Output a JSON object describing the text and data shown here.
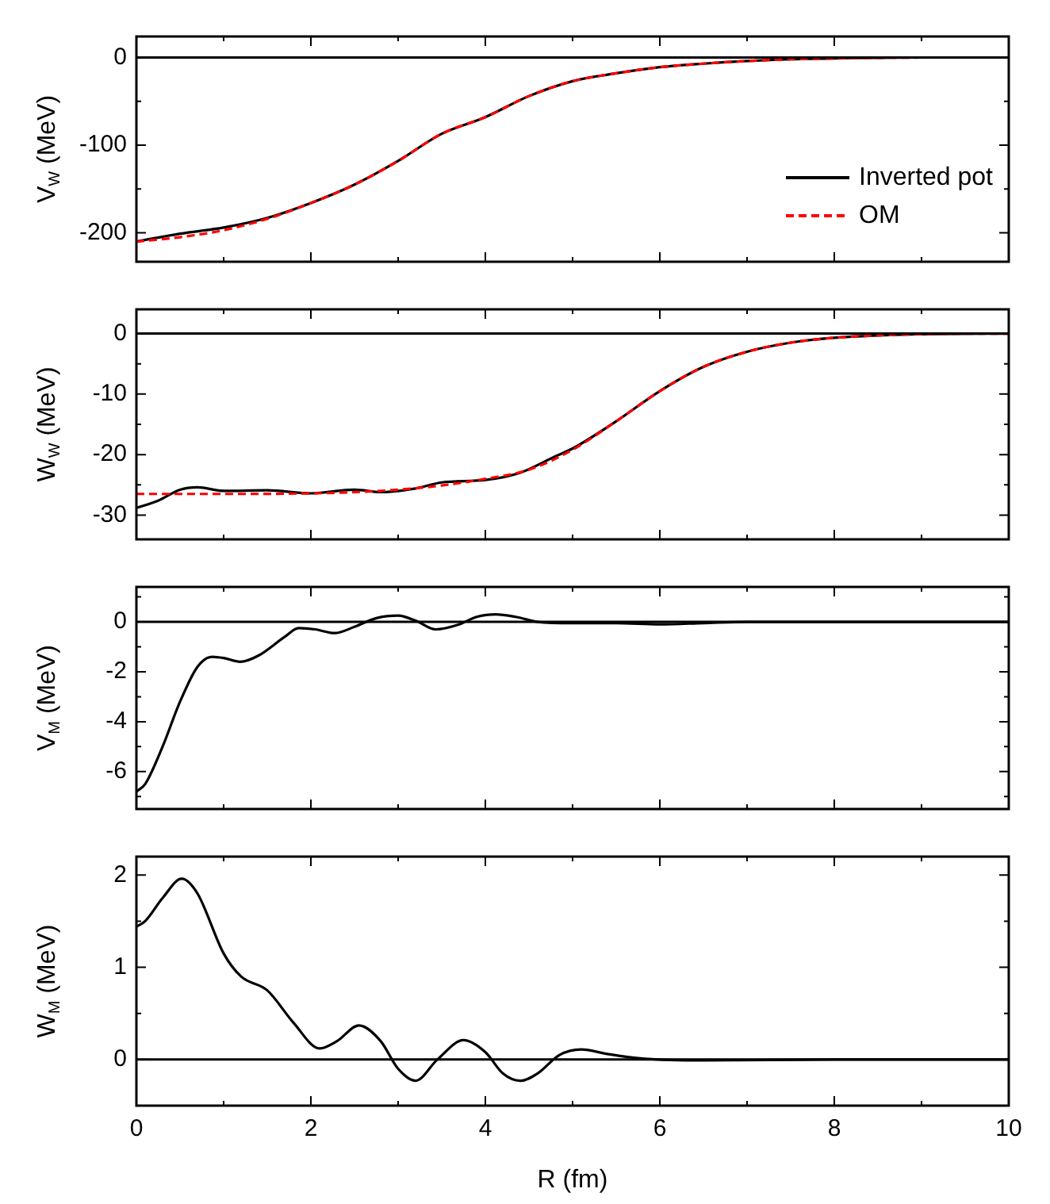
{
  "chart_data": [
    {
      "type": "line",
      "ylabel": "V$_{W}$ (MeV)",
      "xlim": [
        0,
        10
      ],
      "xticks": [
        0,
        {
          "value": 1,
          "label": null
        },
        2,
        {
          "value": 3,
          "label": null
        },
        4,
        {
          "value": 5,
          "label": null
        },
        6,
        {
          "value": 7,
          "label": null
        },
        8,
        {
          "value": 9,
          "label": null
        },
        10
      ],
      "ylim": [
        -233,
        24
      ],
      "yticks": [
        {
          "value": -200,
          "label": "-200"
        },
        {
          "value": -150,
          "label": null
        },
        {
          "value": -100,
          "label": "-100"
        },
        {
          "value": -50,
          "label": null
        },
        0
      ],
      "tick_labels": "y",
      "grid": false,
      "legend": "right",
      "ref_lines": [
        {
          "axis": "y",
          "value": 0
        }
      ],
      "series": [
        {
          "name": "Inverted pot",
          "color": "#000000",
          "line_style": "solid",
          "x": [
            0,
            0.5,
            1,
            1.5,
            2,
            2.5,
            3,
            3.5,
            4,
            4.5,
            5,
            5.5,
            6,
            6.5,
            7,
            7.5,
            8,
            9,
            10
          ],
          "values": [
            -210,
            -201,
            -194,
            -183,
            -166,
            -145,
            -118,
            -87,
            -68,
            -44,
            -27,
            -18,
            -11,
            -7,
            -4,
            -2,
            -1,
            0,
            0
          ]
        },
        {
          "name": "OM",
          "color": "#ff0000",
          "line_style": "dashed",
          "x": [
            0,
            0.5,
            1,
            1.5,
            2,
            2.5,
            3,
            3.5,
            4,
            4.5,
            5,
            5.5,
            6,
            6.5,
            7,
            7.5,
            8,
            9,
            10
          ],
          "values": [
            -210,
            -205,
            -197,
            -184,
            -166,
            -145,
            -118,
            -87,
            -68,
            -44,
            -27,
            -18,
            -11,
            -7,
            -4,
            -2,
            -1,
            0,
            0
          ]
        }
      ]
    },
    {
      "type": "line",
      "ylabel": "W$_{W}$ (MeV)",
      "xlim": [
        0,
        10
      ],
      "xticks": [
        0,
        {
          "value": 1,
          "label": null
        },
        2,
        {
          "value": 3,
          "label": null
        },
        4,
        {
          "value": 5,
          "label": null
        },
        6,
        {
          "value": 7,
          "label": null
        },
        8,
        {
          "value": 9,
          "label": null
        },
        10
      ],
      "ylim": [
        -34,
        4
      ],
      "yticks": [
        -30,
        {
          "value": -25,
          "label": null
        },
        -20,
        {
          "value": -15,
          "label": null
        },
        -10,
        {
          "value": -5,
          "label": null
        },
        0
      ],
      "tick_labels": "y",
      "grid": false,
      "ref_lines": [
        {
          "axis": "y",
          "value": 0
        }
      ],
      "series": [
        {
          "color": "#000000",
          "line_style": "solid",
          "x": [
            0,
            0.25,
            0.5,
            0.7,
            1,
            1.5,
            2,
            2.5,
            2.8,
            3.2,
            3.5,
            4,
            4.4,
            4.8,
            5,
            5.5,
            6,
            6.5,
            7,
            7.5,
            8,
            9,
            10
          ],
          "values": [
            -28.8,
            -27.6,
            -25.8,
            -25.4,
            -26,
            -25.9,
            -26.4,
            -25.8,
            -26.2,
            -25.6,
            -24.6,
            -24.2,
            -23,
            -20.3,
            -19,
            -14.5,
            -9.5,
            -5.5,
            -3,
            -1.5,
            -0.7,
            -0.1,
            0
          ]
        },
        {
          "color": "#ff0000",
          "line_style": "dashed",
          "x": [
            0,
            1,
            2,
            2.5,
            3,
            3.5,
            4,
            4.5,
            5,
            5.5,
            6,
            6.5,
            7,
            7.5,
            8,
            9,
            10
          ],
          "values": [
            -26.5,
            -26.5,
            -26.4,
            -26.2,
            -25.8,
            -25.1,
            -24,
            -22.5,
            -19.2,
            -14.5,
            -9.5,
            -5.5,
            -3,
            -1.5,
            -0.7,
            -0.1,
            0
          ]
        }
      ]
    },
    {
      "type": "line",
      "ylabel": "V$_{M}$ (MeV)",
      "xlim": [
        0,
        10
      ],
      "xticks": [
        0,
        {
          "value": 1,
          "label": null
        },
        2,
        {
          "value": 3,
          "label": null
        },
        4,
        {
          "value": 5,
          "label": null
        },
        6,
        {
          "value": 7,
          "label": null
        },
        8,
        {
          "value": 9,
          "label": null
        },
        10
      ],
      "ylim": [
        -7.5,
        1.4
      ],
      "yticks": [
        {
          "value": -7,
          "label": null
        },
        -6,
        {
          "value": -5,
          "label": null
        },
        -4,
        {
          "value": -3,
          "label": null
        },
        -2,
        {
          "value": -1,
          "label": null
        },
        0,
        {
          "value": 1,
          "label": null
        }
      ],
      "tick_labels": "y",
      "grid": false,
      "ref_lines": [
        {
          "axis": "y",
          "value": 0
        }
      ],
      "series": [
        {
          "color": "#000000",
          "line_style": "solid",
          "x": [
            0,
            0.1,
            0.3,
            0.5,
            0.7,
            0.87,
            1,
            1.19,
            1.4,
            1.7,
            1.86,
            2.05,
            2.27,
            2.5,
            2.75,
            3,
            3.2,
            3.43,
            3.7,
            3.9,
            4.12,
            4.35,
            4.6,
            5,
            5.5,
            6,
            6.5,
            7,
            8,
            10
          ],
          "values": [
            -6.8,
            -6.5,
            -5,
            -3.2,
            -1.8,
            -1.4,
            -1.45,
            -1.6,
            -1.35,
            -0.6,
            -0.25,
            -0.3,
            -0.45,
            -0.2,
            0.15,
            0.25,
            0.05,
            -0.3,
            -0.1,
            0.2,
            0.3,
            0.2,
            0,
            -0.05,
            -0.05,
            -0.1,
            -0.05,
            0,
            0,
            0
          ]
        }
      ]
    },
    {
      "type": "line",
      "ylabel": "W$_{M}$ (MeV)",
      "xlabel": "R (fm)",
      "xlim": [
        0,
        10
      ],
      "xticks": [
        0,
        {
          "value": 1,
          "label": null
        },
        2,
        {
          "value": 3,
          "label": null
        },
        4,
        {
          "value": 5,
          "label": null
        },
        6,
        {
          "value": 7,
          "label": null
        },
        8,
        {
          "value": 9,
          "label": null
        },
        10
      ],
      "ylim": [
        -0.5,
        2.2
      ],
      "yticks": [
        0,
        {
          "value": 0.5,
          "label": null
        },
        1,
        {
          "value": 1.5,
          "label": null
        },
        2
      ],
      "grid": false,
      "ref_lines": [
        {
          "axis": "y",
          "value": 0
        }
      ],
      "series": [
        {
          "color": "#000000",
          "line_style": "solid",
          "x": [
            0,
            0.1,
            0.3,
            0.52,
            0.7,
            1,
            1.2,
            1.5,
            1.8,
            2.1,
            2.3,
            2.55,
            2.8,
            3,
            3.2,
            3.45,
            3.75,
            4,
            4.2,
            4.4,
            4.6,
            4.85,
            5.1,
            5.4,
            5.8,
            6.5,
            8,
            10
          ],
          "values": [
            1.44,
            1.5,
            1.75,
            1.96,
            1.8,
            1.15,
            0.9,
            0.75,
            0.4,
            0.12,
            0.2,
            0.37,
            0.2,
            -0.1,
            -0.23,
            0,
            0.21,
            0.08,
            -0.15,
            -0.23,
            -0.15,
            0.05,
            0.11,
            0.06,
            0.01,
            -0.01,
            0,
            0
          ]
        }
      ]
    }
  ]
}
